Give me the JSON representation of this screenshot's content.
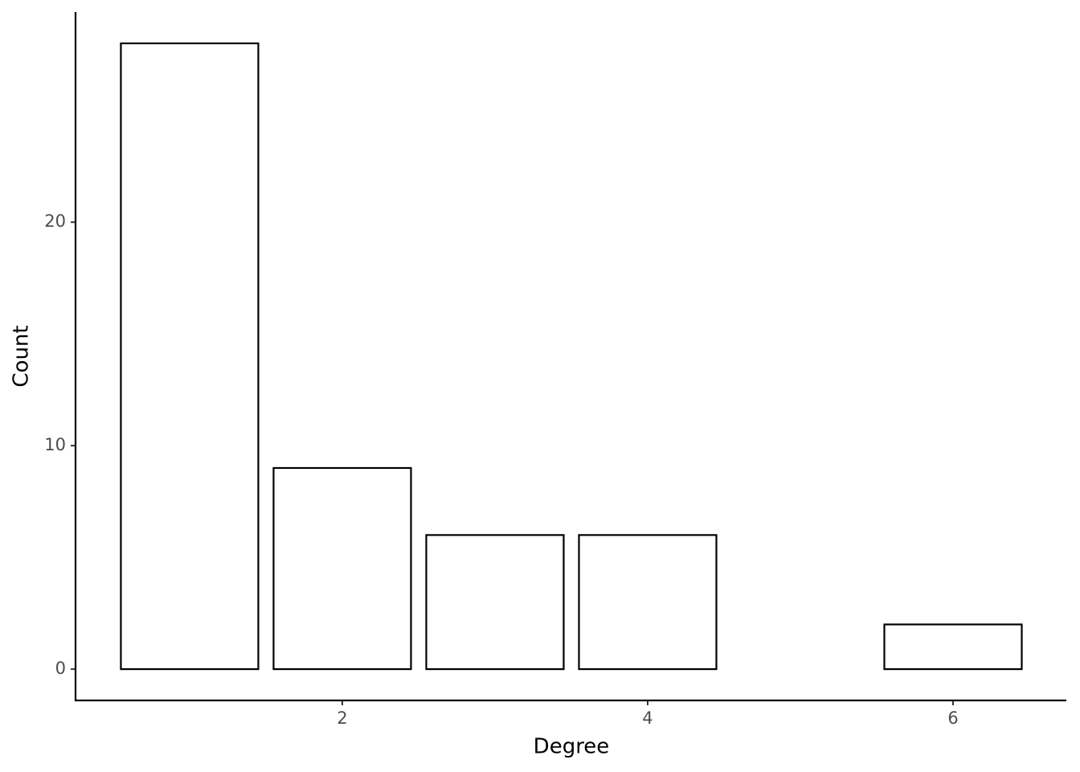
{
  "chart_data": {
    "type": "bar",
    "x": [
      1,
      2,
      3,
      4,
      6
    ],
    "values": [
      28,
      9,
      6,
      6,
      2
    ],
    "fill": "#ffffff",
    "stroke": "#000000",
    "xlabel": "Degree",
    "ylabel": "Count",
    "xlim": [
      0.253,
      6.742
    ],
    "xticks": [
      2,
      4,
      6
    ],
    "ylim": [
      -1.4,
      29.4
    ],
    "yticks": [
      0,
      10,
      20
    ],
    "grid": false
  }
}
